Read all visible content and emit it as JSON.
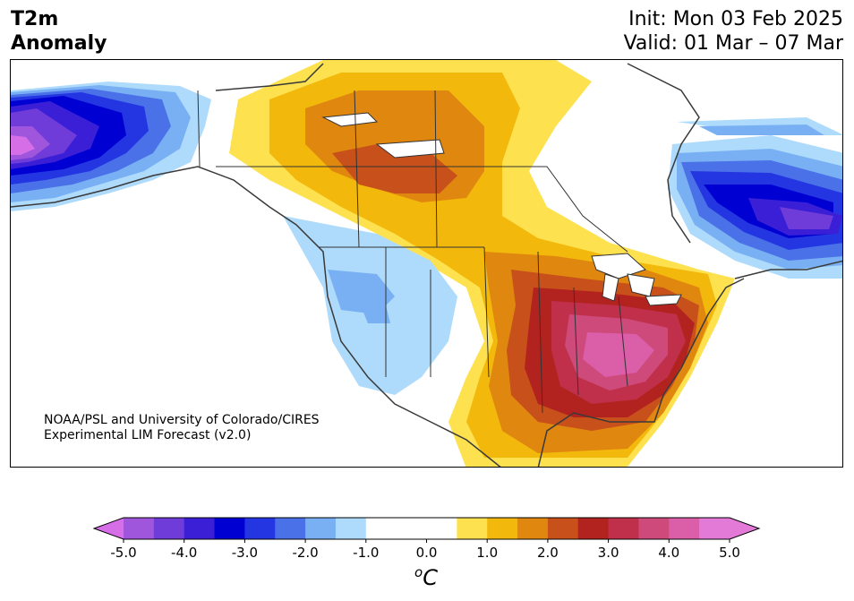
{
  "title": {
    "variable_line1": "T2m",
    "variable_line2": "Anomaly",
    "init": "Init: Mon 03 Feb 2025",
    "valid": "Valid: 01 Mar – 07 Mar"
  },
  "credit": {
    "line1": "NOAA/PSL and University of Colorado/CIRES",
    "line2": "Experimental LIM Forecast (v2.0)"
  },
  "colorbar": {
    "units_sup": "o",
    "units_base": "C",
    "tick_labels": [
      "-5.0",
      "-4.0",
      "-3.0",
      "-2.0",
      "-1.0",
      "0.0",
      "1.0",
      "2.0",
      "3.0",
      "4.0",
      "5.0"
    ],
    "levels": [
      -5.0,
      -4.5,
      -4.0,
      -3.5,
      -3.0,
      -2.5,
      -2.0,
      -1.5,
      -1.0,
      -0.5,
      0.5,
      1.0,
      1.5,
      2.0,
      2.5,
      3.0,
      3.5,
      4.0,
      4.5,
      5.0
    ],
    "colors": [
      "#d66ee8",
      "#9f56dd",
      "#6f3bd9",
      "#3b1fd6",
      "#0000d3",
      "#2436e2",
      "#4a71e7",
      "#78b0f3",
      "#aedbfb",
      "#ffffff",
      "#ffffff",
      "#fde14e",
      "#f3b80c",
      "#e0870f",
      "#c8501a",
      "#b2231f",
      "#c0304b",
      "#cd4a7a",
      "#da5ea8",
      "#e47ad7"
    ],
    "extend": "both"
  },
  "map_data": {
    "region": "North America",
    "field": "2 m temperature anomaly",
    "features": [
      {
        "name": "Alaska",
        "anomaly_range": [
          -5.0,
          -1.0
        ]
      },
      {
        "name": "Pacific Northwest to Southwest US",
        "anomaly_range": [
          -2.0,
          -0.5
        ]
      },
      {
        "name": "Northern Plains and Canadian Prairies",
        "anomaly_range": [
          1.0,
          3.0
        ]
      },
      {
        "name": "Southeast US",
        "anomaly_range": [
          3.0,
          5.0
        ]
      },
      {
        "name": "Eastern Canada / Labrador",
        "anomaly_range": [
          -3.5,
          -1.0
        ]
      }
    ]
  }
}
